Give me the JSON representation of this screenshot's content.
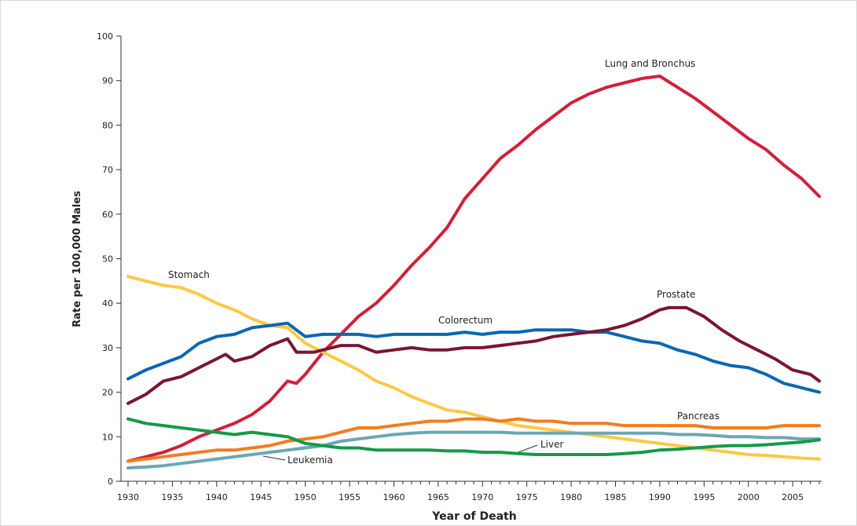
{
  "chart_data": {
    "type": "line",
    "xlabel": "Year of Death",
    "ylabel": "Rate per 100,000 Males",
    "xlim": [
      1930,
      2008
    ],
    "ylim": [
      0,
      100
    ],
    "x_ticks": [
      "1930",
      "1935",
      "1940",
      "1945",
      "1950",
      "1955",
      "1960",
      "1965",
      "1970",
      "1975",
      "1980",
      "1985",
      "1990",
      "1995",
      "2000",
      "2005"
    ],
    "y_ticks": [
      "0",
      "10",
      "20",
      "30",
      "40",
      "50",
      "60",
      "70",
      "80",
      "90",
      "100"
    ],
    "grid": false,
    "legend": "none",
    "series": [
      {
        "name": "Lung and Bronchus",
        "color": "#d21f3c",
        "x": [
          1930,
          1932,
          1934,
          1936,
          1938,
          1940,
          1942,
          1944,
          1946,
          1948,
          1949,
          1950,
          1952,
          1954,
          1956,
          1958,
          1960,
          1962,
          1964,
          1966,
          1968,
          1970,
          1972,
          1974,
          1976,
          1978,
          1980,
          1982,
          1984,
          1986,
          1988,
          1990,
          1992,
          1994,
          1996,
          1998,
          2000,
          2002,
          2004,
          2006,
          2008
        ],
        "y": [
          4.5,
          5.5,
          6.5,
          8,
          10,
          11.5,
          13,
          15,
          18,
          22.5,
          22,
          24,
          29,
          33,
          37,
          40,
          44,
          48.5,
          52.5,
          57,
          63.5,
          68,
          72.5,
          75.5,
          79,
          82,
          85,
          87,
          88.5,
          89.5,
          90.5,
          91,
          88.5,
          86,
          83,
          80,
          77,
          74.5,
          71,
          68,
          64
        ]
      },
      {
        "name": "Stomach",
        "color": "#ffc845",
        "x": [
          1930,
          1932,
          1934,
          1936,
          1938,
          1940,
          1942,
          1944,
          1946,
          1948,
          1950,
          1952,
          1954,
          1956,
          1958,
          1960,
          1962,
          1964,
          1966,
          1968,
          1970,
          1972,
          1974,
          1976,
          1978,
          1980,
          1982,
          1984,
          1986,
          1988,
          1990,
          1992,
          1994,
          1996,
          1998,
          2000,
          2002,
          2004,
          2006,
          2008
        ],
        "y": [
          46,
          45,
          44,
          43.5,
          42,
          40,
          38.5,
          36.5,
          35,
          34.5,
          31,
          29,
          27,
          25,
          22.5,
          21,
          19,
          17.5,
          16,
          15.5,
          14.5,
          13.5,
          12.5,
          12,
          11.5,
          11,
          10.5,
          10,
          9.5,
          9,
          8.5,
          8,
          7.5,
          7,
          6.5,
          6,
          5.8,
          5.5,
          5.2,
          5
        ]
      },
      {
        "name": "Colorectum",
        "color": "#0c66b2",
        "x": [
          1930,
          1932,
          1934,
          1936,
          1938,
          1940,
          1942,
          1944,
          1946,
          1948,
          1950,
          1952,
          1954,
          1956,
          1958,
          1960,
          1962,
          1964,
          1966,
          1968,
          1970,
          1972,
          1974,
          1976,
          1978,
          1980,
          1982,
          1984,
          1986,
          1988,
          1990,
          1992,
          1994,
          1996,
          1998,
          2000,
          2002,
          2004,
          2006,
          2008
        ],
        "y": [
          23,
          25,
          26.5,
          28,
          31,
          32.5,
          33,
          34.5,
          35,
          35.5,
          32.5,
          33,
          33,
          33,
          32.5,
          33,
          33,
          33,
          33,
          33.5,
          33,
          33.5,
          33.5,
          34,
          34,
          34,
          33.5,
          33.5,
          32.5,
          31.5,
          31,
          29.5,
          28.5,
          27,
          26,
          25.5,
          24,
          22,
          21,
          20
        ]
      },
      {
        "name": "Prostate",
        "color": "#7a1531",
        "x": [
          1930,
          1932,
          1934,
          1936,
          1938,
          1940,
          1941,
          1942,
          1944,
          1946,
          1948,
          1949,
          1951,
          1952,
          1954,
          1956,
          1958,
          1960,
          1962,
          1964,
          1966,
          1968,
          1970,
          1972,
          1974,
          1976,
          1978,
          1980,
          1982,
          1984,
          1986,
          1988,
          1990,
          1991,
          1993,
          1995,
          1997,
          1999,
          2001,
          2003,
          2005,
          2007,
          2008
        ],
        "y": [
          17.5,
          19.5,
          22.5,
          23.5,
          25.5,
          27.5,
          28.5,
          27,
          28,
          30.5,
          32,
          29,
          29,
          29.5,
          30.5,
          30.5,
          29,
          29.5,
          30,
          29.5,
          29.5,
          30,
          30,
          30.5,
          31,
          31.5,
          32.5,
          33,
          33.5,
          34,
          35,
          36.5,
          38.5,
          39,
          39,
          37,
          34,
          31.5,
          29.5,
          27.5,
          25,
          24,
          22.5
        ]
      },
      {
        "name": "Pancreas",
        "color": "#f07d22",
        "x": [
          1930,
          1932,
          1934,
          1936,
          1938,
          1940,
          1942,
          1944,
          1946,
          1948,
          1950,
          1952,
          1954,
          1956,
          1958,
          1960,
          1962,
          1964,
          1966,
          1968,
          1970,
          1972,
          1974,
          1976,
          1978,
          1980,
          1982,
          1984,
          1986,
          1988,
          1990,
          1992,
          1994,
          1996,
          1998,
          2000,
          2002,
          2004,
          2006,
          2008
        ],
        "y": [
          4.5,
          5,
          5.5,
          6,
          6.5,
          7,
          7,
          7.5,
          8,
          9,
          9.5,
          10,
          11,
          12,
          12,
          12.5,
          13,
          13.5,
          13.5,
          14,
          14,
          13.5,
          14,
          13.5,
          13.5,
          13,
          13,
          13,
          12.5,
          12.5,
          12.5,
          12.5,
          12.5,
          12,
          12,
          12,
          12,
          12.5,
          12.5,
          12.5
        ]
      },
      {
        "name": "Leukemia",
        "color": "#6aa7b3",
        "x": [
          1930,
          1932,
          1934,
          1936,
          1938,
          1940,
          1942,
          1944,
          1946,
          1948,
          1950,
          1952,
          1954,
          1956,
          1958,
          1960,
          1962,
          1964,
          1966,
          1968,
          1970,
          1972,
          1974,
          1976,
          1978,
          1980,
          1982,
          1984,
          1986,
          1988,
          1990,
          1992,
          1994,
          1996,
          1998,
          2000,
          2002,
          2004,
          2006,
          2008
        ],
        "y": [
          3,
          3.2,
          3.5,
          4,
          4.5,
          5,
          5.5,
          6,
          6.5,
          7,
          7.5,
          8,
          9,
          9.5,
          10,
          10.5,
          10.8,
          11,
          11,
          11,
          11,
          11,
          10.8,
          10.8,
          10.8,
          10.8,
          10.8,
          10.8,
          10.8,
          10.8,
          10.8,
          10.5,
          10.5,
          10.3,
          10,
          10,
          9.8,
          9.8,
          9.5,
          9.5
        ]
      },
      {
        "name": "Liver",
        "color": "#159a48",
        "x": [
          1930,
          1932,
          1934,
          1936,
          1938,
          1940,
          1942,
          1944,
          1946,
          1948,
          1950,
          1952,
          1954,
          1956,
          1958,
          1960,
          1962,
          1964,
          1966,
          1968,
          1970,
          1972,
          1974,
          1976,
          1978,
          1980,
          1982,
          1984,
          1986,
          1988,
          1990,
          1992,
          1994,
          1996,
          1998,
          2000,
          2002,
          2004,
          2006,
          2008
        ],
        "y": [
          14,
          13,
          12.5,
          12,
          11.5,
          11,
          10.5,
          11,
          10.5,
          10,
          8.5,
          8,
          7.5,
          7.5,
          7,
          7,
          7,
          7,
          6.8,
          6.8,
          6.5,
          6.5,
          6.2,
          6,
          6,
          6,
          6,
          6,
          6.2,
          6.5,
          7,
          7.2,
          7.5,
          7.8,
          8,
          8,
          8.2,
          8.5,
          8.8,
          9.3
        ]
      }
    ],
    "annotations": [
      {
        "text": "Lung and Bronchus",
        "series": "Lung and Bronchus"
      },
      {
        "text": "Stomach",
        "series": "Stomach"
      },
      {
        "text": "Colorectum",
        "series": "Colorectum"
      },
      {
        "text": "Prostate",
        "series": "Prostate"
      },
      {
        "text": "Pancreas",
        "series": "Pancreas"
      },
      {
        "text": "Leukemia",
        "series": "Leukemia"
      },
      {
        "text": "Liver",
        "series": "Liver"
      }
    ]
  }
}
